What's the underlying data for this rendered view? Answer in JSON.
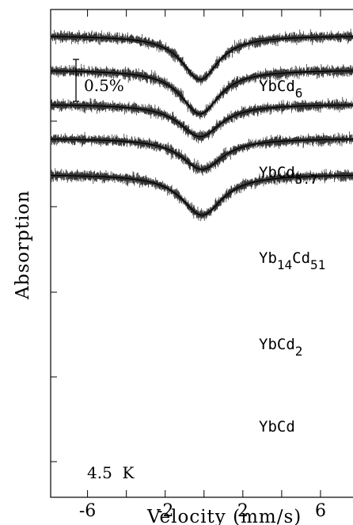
{
  "chart_data": {
    "type": "line",
    "xlabel": "Velocity (mm/s)",
    "ylabel": "Absorption",
    "xlim": [
      -7.9,
      8
    ],
    "x_ticks": [
      -6,
      -2,
      2,
      6
    ],
    "x_tick_labels": [
      "-6",
      "-2",
      "2",
      "6"
    ],
    "x_minor_ticks": [
      -6,
      -4,
      -2,
      0,
      2,
      4,
      6
    ],
    "scale_bar_label": "0.5%",
    "scale_bar_value": 0.5,
    "temperature_label": "4.5  K",
    "series": [
      {
        "name": "YbCd6",
        "label_main": "YbCd",
        "label_sub": "6",
        "label_sub2": "",
        "baseline": 0,
        "depth": 2.7,
        "center": -0.2,
        "width": 2.3
      },
      {
        "name": "YbCd5.7",
        "label_main": "YbCd",
        "label_sub": "5.7",
        "label_sub2": "",
        "baseline": -2.1,
        "depth": 2.7,
        "center": -0.2,
        "width": 2.4
      },
      {
        "name": "Yb14Cd51",
        "label_main": "Yb",
        "label_sub": "14",
        "label_main2": "Cd",
        "label_sub2": "51",
        "baseline": -4.2,
        "depth": 2.0,
        "center": -0.2,
        "width": 2.6
      },
      {
        "name": "YbCd2",
        "label_main": "YbCd",
        "label_sub": "2",
        "label_sub2": "",
        "baseline": -6.3,
        "depth": 1.9,
        "center": -0.1,
        "width": 2.6
      },
      {
        "name": "YbCd",
        "label_main": "YbCd",
        "label_sub": "",
        "label_sub2": "",
        "baseline": -8.5,
        "depth": 2.5,
        "center": -0.1,
        "width": 2.6
      }
    ]
  }
}
